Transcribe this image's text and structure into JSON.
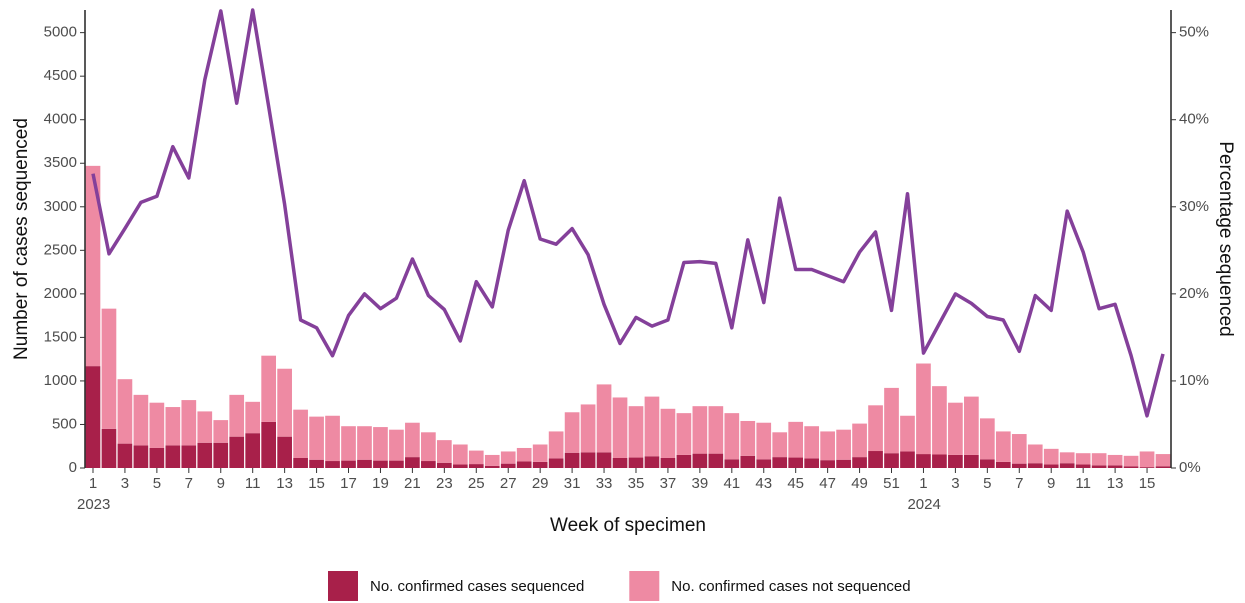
{
  "chart_data": {
    "type": "bar-line",
    "x_label": "Week of specimen",
    "y_label": "Number of cases sequenced",
    "y2_label": "Percentage sequenced",
    "annotations": [
      "2023",
      "2024"
    ],
    "categories": [
      "1",
      null,
      "3",
      null,
      "5",
      null,
      "7",
      null,
      "9",
      null,
      "11",
      null,
      "13",
      null,
      "15",
      null,
      "17",
      null,
      "19",
      null,
      "21",
      null,
      "23",
      null,
      "25",
      null,
      "27",
      null,
      "29",
      null,
      "31",
      null,
      "33",
      null,
      "35",
      null,
      "37",
      null,
      "39",
      null,
      "41",
      null,
      "43",
      null,
      "45",
      null,
      "47",
      null,
      "49",
      null,
      "51",
      null,
      "1",
      null,
      "3",
      null,
      "5",
      null,
      "7",
      null,
      "9",
      null,
      "11",
      null,
      "13",
      null,
      "15",
      null
    ],
    "ylim": [
      0,
      5260
    ],
    "yticks": [
      0,
      500,
      1000,
      1500,
      2000,
      2500,
      3000,
      3500,
      4000,
      4500,
      5000
    ],
    "y2lim": [
      0,
      52.6
    ],
    "y2ticks": [
      {
        "value": 0,
        "label": "0%"
      },
      {
        "value": 10,
        "label": "10%"
      },
      {
        "value": 20,
        "label": "20%"
      },
      {
        "value": 30,
        "label": "30%"
      },
      {
        "value": 40,
        "label": "40%"
      },
      {
        "value": 50,
        "label": "50%"
      }
    ],
    "series": [
      {
        "name": "No. confirmed cases sequenced",
        "type": "bar",
        "color": "#a8204a",
        "values": [
          1170,
          450,
          280,
          260,
          230,
          260,
          260,
          290,
          290,
          360,
          400,
          530,
          360,
          115,
          95,
          80,
          85,
          95,
          85,
          85,
          125,
          80,
          60,
          40,
          45,
          25,
          50,
          75,
          70,
          110,
          175,
          180,
          180,
          115,
          120,
          135,
          115,
          150,
          165,
          165,
          100,
          140,
          100,
          125,
          120,
          110,
          90,
          95,
          125,
          195,
          170,
          190,
          160,
          155,
          150,
          150,
          100,
          70,
          50,
          55,
          40,
          55,
          40,
          30,
          30,
          20,
          10,
          20
        ]
      },
      {
        "name": "No. confirmed cases not sequenced",
        "type": "bar",
        "color": "#ee8aa3",
        "values": [
          2300,
          1380,
          740,
          580,
          520,
          440,
          520,
          360,
          260,
          480,
          360,
          760,
          780,
          555,
          495,
          520,
          395,
          385,
          385,
          355,
          395,
          330,
          260,
          230,
          155,
          125,
          140,
          155,
          200,
          310,
          465,
          550,
          780,
          695,
          590,
          685,
          565,
          480,
          545,
          545,
          530,
          400,
          420,
          285,
          410,
          370,
          330,
          345,
          385,
          525,
          750,
          410,
          1040,
          785,
          600,
          670,
          470,
          350,
          340,
          215,
          180,
          125,
          130,
          140,
          120,
          120,
          180,
          140
        ]
      },
      {
        "type": "line",
        "axis": "y2",
        "color": "#84409a",
        "values": [
          33.8,
          24.6,
          27.5,
          30.5,
          31.2,
          36.9,
          33.3,
          44.6,
          52.5,
          41.9,
          52.6,
          41.5,
          30.3,
          17,
          16.1,
          12.9,
          17.5,
          20,
          18.3,
          19.5,
          24,
          19.8,
          18.2,
          14.6,
          21.4,
          18.5,
          27.3,
          33,
          26.3,
          25.7,
          27.5,
          24.5,
          18.8,
          14.3,
          17.3,
          16.3,
          17,
          23.6,
          23.7,
          23.5,
          16.1,
          26.2,
          19,
          31,
          22.8,
          22.8,
          22.1,
          21.4,
          24.8,
          27.1,
          18.1,
          31.5,
          13.2,
          16.6,
          20,
          18.9,
          17.4,
          17,
          13.4,
          19.8,
          18.1,
          29.5,
          24.8,
          18.3,
          18.8,
          12.9,
          6,
          13.1
        ]
      }
    ]
  }
}
